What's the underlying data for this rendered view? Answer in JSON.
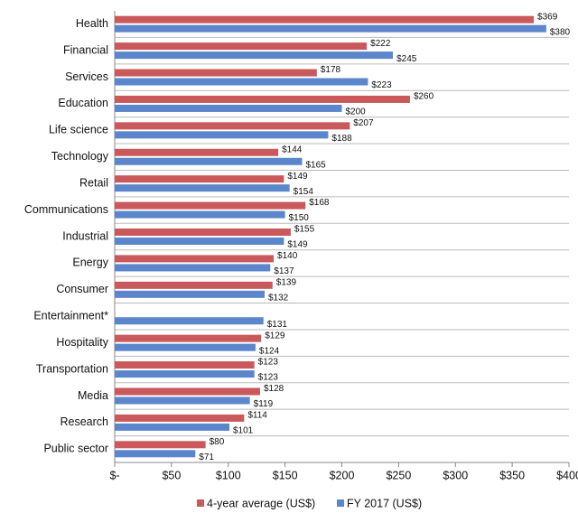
{
  "chart_data": {
    "type": "hbar",
    "categories": [
      "Health",
      "Financial",
      "Services",
      "Education",
      "Life science",
      "Technology",
      "Retail",
      "Communications",
      "Industrial",
      "Energy",
      "Consumer",
      "Entertainment*",
      "Hospitality",
      "Transportation",
      "Media",
      "Research",
      "Public sector"
    ],
    "series": [
      {
        "name": "4-year average (US$)",
        "color": "#c9595a",
        "values": [
          369,
          222,
          178,
          260,
          207,
          144,
          149,
          168,
          155,
          140,
          139,
          null,
          129,
          123,
          128,
          114,
          80
        ],
        "value_labels": [
          "$369",
          "$222",
          "$178",
          "$260",
          "$207",
          "$144",
          "$149",
          "$168",
          "$155",
          "$140",
          "$139",
          null,
          "$129",
          "$123",
          "$128",
          "$114",
          "$80"
        ]
      },
      {
        "name": "FY 2017 (US$)",
        "color": "#5b86cc",
        "values": [
          380,
          245,
          223,
          200,
          188,
          165,
          154,
          150,
          149,
          137,
          132,
          131,
          124,
          123,
          119,
          101,
          71
        ],
        "value_labels": [
          "$380",
          "$245",
          "$223",
          "$200",
          "$188",
          "$165",
          "$154",
          "$150",
          "$149",
          "$137",
          "$132",
          "$131",
          "$124",
          "$123",
          "$119",
          "$101",
          "$71"
        ]
      }
    ],
    "xlim": [
      0,
      400
    ],
    "xticks": [
      {
        "value": 0,
        "label": "$-"
      },
      {
        "value": 50,
        "label": "$50"
      },
      {
        "value": 100,
        "label": "$100"
      },
      {
        "value": 150,
        "label": "$150"
      },
      {
        "value": 200,
        "label": "$200"
      },
      {
        "value": 250,
        "label": "$250"
      },
      {
        "value": 300,
        "label": "$300"
      },
      {
        "value": 350,
        "label": "$350"
      },
      {
        "value": 400,
        "label": "$400"
      }
    ]
  }
}
